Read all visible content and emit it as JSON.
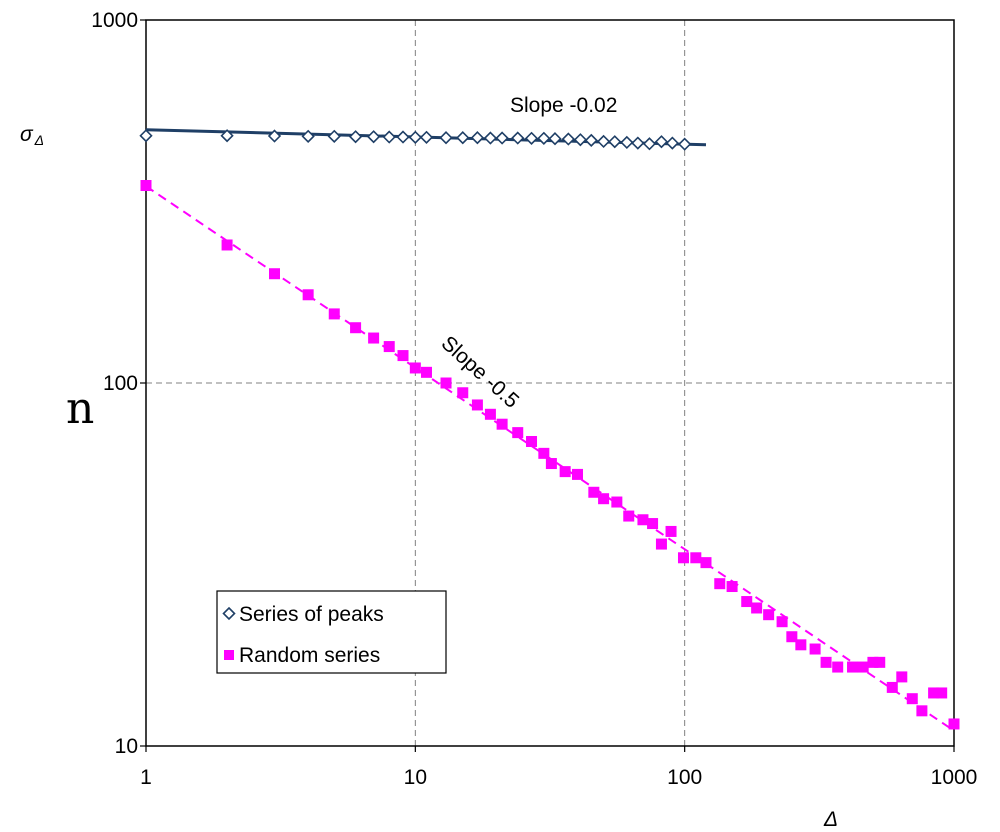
{
  "chart_data": {
    "type": "scatter",
    "xscale": "log",
    "yscale": "log",
    "xlim": [
      1,
      1000
    ],
    "ylim": [
      10,
      1000
    ],
    "grid": true,
    "legend_position": "bottom-left",
    "x_ticks": [
      "1",
      "10",
      "100",
      "1000"
    ],
    "y_ticks": [
      "10",
      "100",
      "1000"
    ],
    "xlabel": "Δ",
    "ylabel": "σ",
    "ylabel_sub": "Δ",
    "stray_text": "n",
    "colors": {
      "peaks": "#1f3f66",
      "random": "#ff00ff",
      "grid": "#808080"
    },
    "annotations": [
      {
        "text": "Slope -0.02"
      },
      {
        "text": "Slope -0.5"
      }
    ],
    "series": [
      {
        "name": "Series of peaks",
        "marker": "diamond-open",
        "x": [
          1,
          2,
          3,
          4,
          5,
          6,
          7,
          8,
          9,
          10,
          11,
          13,
          15,
          17,
          19,
          21,
          24,
          27,
          30,
          33,
          37,
          41,
          45,
          50,
          55,
          61,
          67,
          74,
          82,
          90,
          100
        ],
        "y": [
          480,
          480,
          479,
          478,
          478,
          477,
          477,
          476,
          476,
          475,
          475,
          474,
          474,
          474,
          473,
          473,
          473,
          472,
          472,
          471,
          470,
          468,
          466,
          463,
          462,
          460,
          458,
          456,
          462,
          458,
          455
        ]
      },
      {
        "name": "Random series",
        "marker": "square-filled",
        "x": [
          1,
          2,
          3,
          4,
          5,
          6,
          7,
          8,
          9,
          10,
          11,
          13,
          15,
          17,
          19,
          21,
          24,
          27,
          30,
          32,
          36,
          40,
          46,
          50,
          56,
          62,
          70,
          76,
          82,
          89,
          99,
          110,
          120,
          135,
          150,
          170,
          185,
          205,
          230,
          250,
          270,
          305,
          335,
          370,
          420,
          460,
          500,
          530,
          590,
          640,
          700,
          760,
          840,
          900,
          1000
        ],
        "y": [
          350,
          240,
          200,
          175,
          155,
          142,
          133,
          126,
          119,
          110,
          107,
          100,
          94,
          87,
          82,
          77,
          73,
          69,
          64,
          60,
          57,
          56,
          50,
          48,
          47,
          43,
          42,
          41,
          36,
          39,
          33,
          33,
          32,
          28,
          27.5,
          25,
          24,
          23,
          22,
          20,
          19,
          18.5,
          17,
          16.5,
          16.5,
          16.5,
          17,
          17,
          14.5,
          15.5,
          13.5,
          12.5,
          14,
          14,
          11.5
        ]
      }
    ],
    "fits": [
      {
        "series": "Series of peaks",
        "slope": -0.02,
        "x": [
          1,
          120
        ]
      },
      {
        "series": "Random series",
        "slope": -0.5,
        "x": [
          1,
          1000
        ]
      }
    ]
  }
}
